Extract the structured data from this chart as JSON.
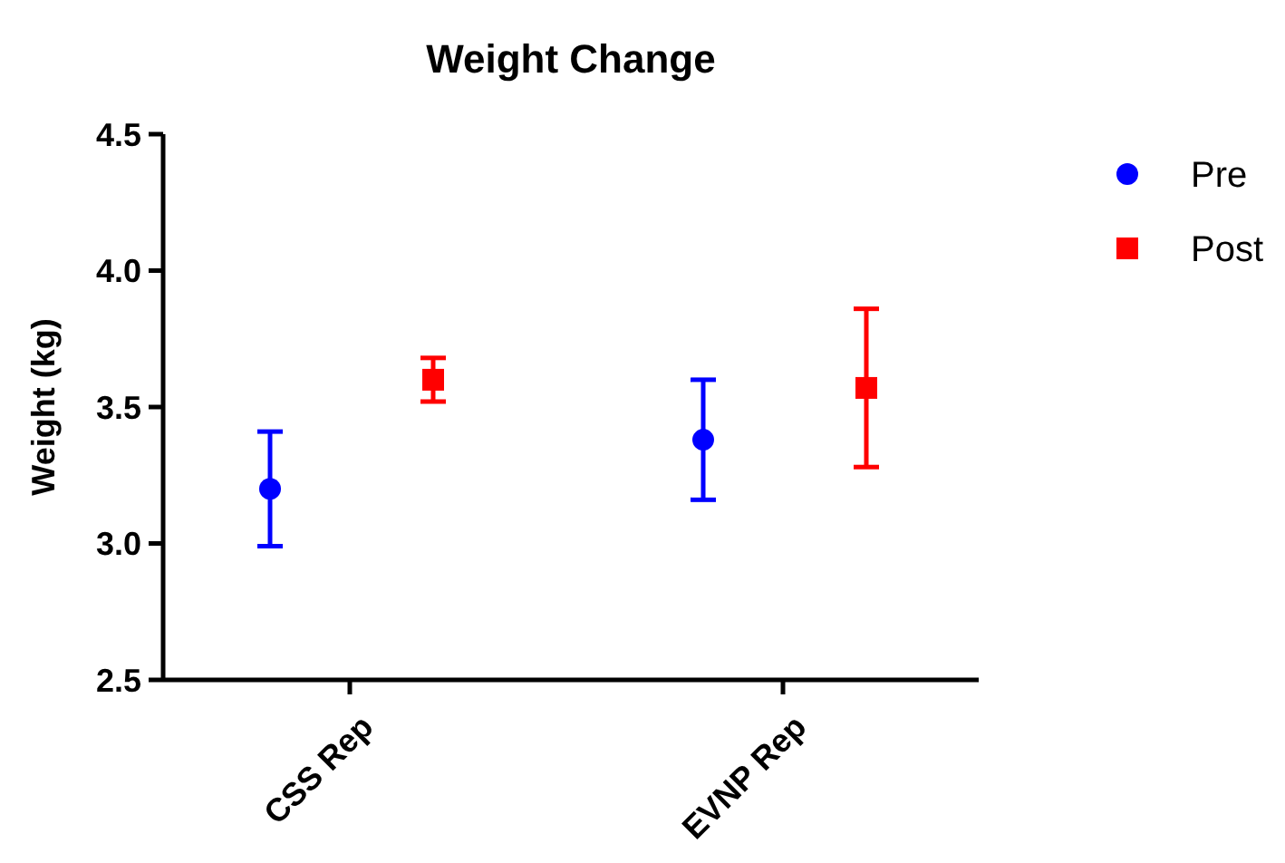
{
  "chart_data": {
    "type": "scatter",
    "title": "Weight Change",
    "ylabel": "Weight (kg)",
    "categories": [
      "CSS Rep",
      "EVNP Rep"
    ],
    "ylim": [
      2.5,
      4.5
    ],
    "yticks": [
      {
        "value": 2.5,
        "label": "2.5"
      },
      {
        "value": 3,
        "label": "3.0"
      },
      {
        "value": 3.5,
        "label": "3.5"
      },
      {
        "value": 4,
        "label": "4.0"
      },
      {
        "value": 4.5,
        "label": "4.5"
      }
    ],
    "grid": false,
    "legend": "top right",
    "series": [
      {
        "name": "Pre",
        "color": "#0000ff",
        "marker": "circle",
        "values": [
          3.2,
          3.38
        ],
        "errors": [
          0.21,
          0.22
        ]
      },
      {
        "name": "Post",
        "color": "#ff0000",
        "marker": "square",
        "values": [
          3.6,
          3.57
        ],
        "errors": [
          0.08,
          0.29
        ]
      }
    ]
  }
}
